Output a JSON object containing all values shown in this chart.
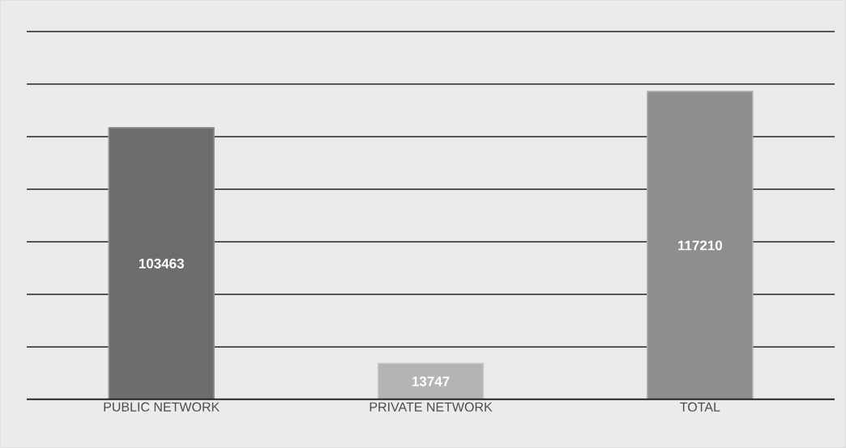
{
  "chart_data": {
    "type": "bar",
    "categories": [
      "PUBLIC NETWORK",
      "PRIVATE NETWORK",
      "TOTAL"
    ],
    "values": [
      103463,
      13747,
      117210
    ],
    "colors": [
      "#6d6d6d",
      "#b4b4b4",
      "#8e8e8e"
    ],
    "ylim": [
      0,
      140000
    ],
    "yticks": [
      {
        "value": 0,
        "label": null
      },
      {
        "value": 20000,
        "label": null
      },
      {
        "value": 40000,
        "label": null
      },
      {
        "value": 60000,
        "label": null
      },
      {
        "value": 80000,
        "label": null
      },
      {
        "value": 100000,
        "label": null
      },
      {
        "value": 120000,
        "label": null
      },
      {
        "value": 140000,
        "label": null
      }
    ],
    "grid": "y",
    "data_labels": true,
    "tick_labels": "x"
  }
}
